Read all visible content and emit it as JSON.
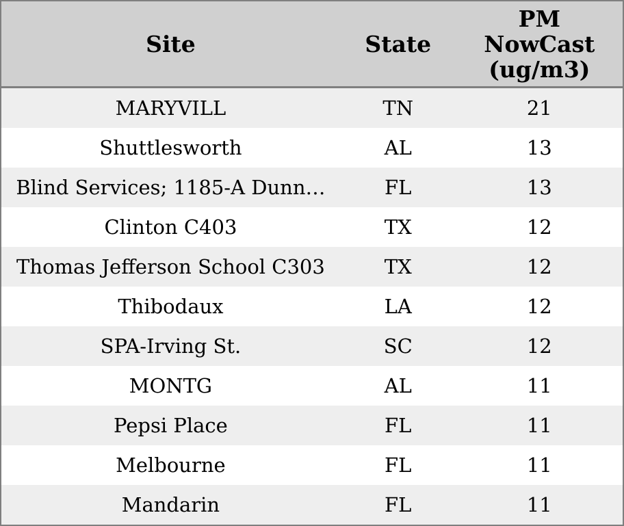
{
  "header": {
    "site": "Site",
    "state": "State",
    "pm": "PM\nNowCast\n(ug/m3)"
  },
  "chart_data": {
    "type": "table",
    "columns": [
      "Site",
      "State",
      "PM NowCast (ug/m3)"
    ],
    "rows": [
      {
        "site": "MARYVILL",
        "state": "TN",
        "pm_nowcast": 21
      },
      {
        "site": "Shuttlesworth",
        "state": "AL",
        "pm_nowcast": 13
      },
      {
        "site": "Blind Services; 1185-A Dunn…",
        "state": "FL",
        "pm_nowcast": 13
      },
      {
        "site": "Clinton C403",
        "state": "TX",
        "pm_nowcast": 12
      },
      {
        "site": "Thomas Jefferson School C303",
        "state": "TX",
        "pm_nowcast": 12
      },
      {
        "site": "Thibodaux",
        "state": "LA",
        "pm_nowcast": 12
      },
      {
        "site": "SPA-Irving St.",
        "state": "SC",
        "pm_nowcast": 12
      },
      {
        "site": "MONTG",
        "state": "AL",
        "pm_nowcast": 11
      },
      {
        "site": "Pepsi Place",
        "state": "FL",
        "pm_nowcast": 11
      },
      {
        "site": "Melbourne",
        "state": "FL",
        "pm_nowcast": 11
      },
      {
        "site": "Mandarin",
        "state": "FL",
        "pm_nowcast": 11
      }
    ]
  },
  "colors": {
    "header_bg": "#d0d0d0",
    "row_stripe_bg": "#eeeeee",
    "row_bg": "#ffffff",
    "border": "#7f7f7f",
    "text": "#000000"
  }
}
